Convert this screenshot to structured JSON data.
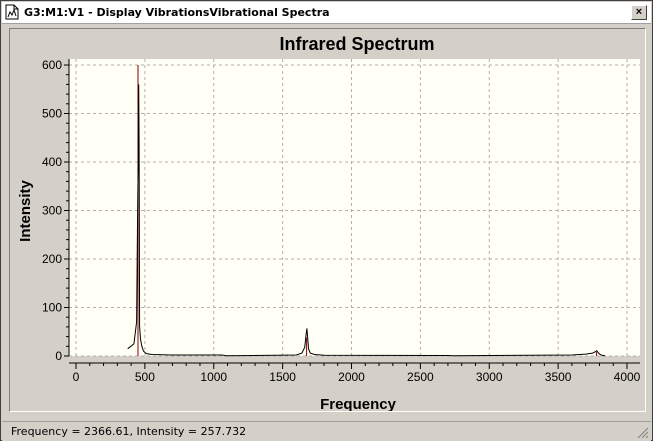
{
  "window": {
    "title": "G3:M1:V1 - Display VibrationsVibrational Spectra",
    "close_glyph": "×"
  },
  "status": {
    "text": "Frequency = 2366.61,  Intensity = 257.732"
  },
  "icons": {
    "app": "document-chart-icon",
    "close": "close-icon",
    "grip": "resize-grip-icon"
  },
  "colors": {
    "plot_background": "#fffff6",
    "spectrum_line": "#000000",
    "stick_line": "#8b0000",
    "grid": "#b0b0b0"
  },
  "chart_data": {
    "type": "line",
    "title": "Infrared Spectrum",
    "xlabel": "Frequency",
    "ylabel": "Intensity",
    "xlim": [
      0,
      4000
    ],
    "ylim": [
      0,
      600
    ],
    "xticks": [
      0,
      500,
      1000,
      1500,
      2000,
      2500,
      3000,
      3500,
      4000
    ],
    "yticks": [
      0,
      100,
      200,
      300,
      400,
      500,
      600
    ],
    "grid": true,
    "series": [
      {
        "kind": "spectrum",
        "x": [
          375,
          420,
          440,
          448,
          452,
          455,
          458,
          462,
          468,
          478,
          490,
          510,
          550,
          700,
          1060,
          1090,
          1600,
          1640,
          1660,
          1672,
          1676,
          1680,
          1688,
          1700,
          1730,
          1800,
          2700,
          2740,
          3600,
          3700,
          3750,
          3772,
          3780,
          3790,
          3810,
          3840
        ],
        "y": [
          15,
          25,
          70,
          315,
          400,
          560,
          440,
          60,
          35,
          20,
          10,
          5,
          3,
          2,
          2,
          0.5,
          2,
          6,
          18,
          48,
          57,
          45,
          15,
          6,
          3,
          1.5,
          1,
          0.5,
          2,
          4,
          6,
          9,
          11,
          7,
          2,
          0.5
        ]
      },
      {
        "kind": "sticks",
        "x": [
          450,
          1674,
          3778
        ],
        "y": [
          600,
          38,
          8
        ]
      }
    ]
  }
}
